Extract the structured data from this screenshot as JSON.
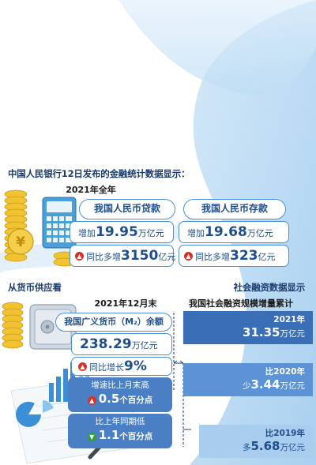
{
  "intro": "中国人民银行12日发布的金融统计数据显示：",
  "year_heading": "2021年全年",
  "loans": {
    "title": "我国人民币贷款",
    "increase_prefix": "增加",
    "increase_value": "19.95",
    "increase_unit": "万亿元",
    "yoy_prefix": "同比多增",
    "yoy_value": "3150",
    "yoy_unit": "亿元"
  },
  "deposits": {
    "title": "我国人民币存款",
    "increase_prefix": "增加",
    "increase_value": "19.68",
    "increase_unit": "万亿元",
    "yoy_prefix": "同比多增",
    "yoy_value": "323",
    "yoy_unit": "亿元"
  },
  "money_supply": {
    "section": "从货币供应看",
    "period": "2021年12月末",
    "title": "我国广义货币（M₂）余额",
    "balance_value": "238.29",
    "balance_unit": "万亿元",
    "yoy_prefix": "同比增长",
    "yoy_value": "9%",
    "vs_last_month_label": "增速比上月末高",
    "vs_last_month_value": "0.5",
    "vs_last_month_unit": "个百分点",
    "vs_last_year_label": "比上年同期低",
    "vs_last_year_value": "1.1",
    "vs_last_year_unit": "个百分点"
  },
  "social_financing": {
    "section": "社会融资数据显示",
    "title": "我国社会融资规模增量累计",
    "bars": [
      {
        "label": "2021年",
        "prefix": "",
        "value": "31.35",
        "unit": "万亿元"
      },
      {
        "label": "比2020年",
        "prefix": "少",
        "value": "3.44",
        "unit": "万亿元"
      },
      {
        "label": "比2019年",
        "prefix": "多",
        "value": "5.68",
        "unit": "万亿元"
      }
    ]
  },
  "colors": {
    "accent": "#4a90d9",
    "navy": "#1a3a6e",
    "bar_dark": "#3a6fb8",
    "bar_mid": "#5b93d6",
    "bar_light": "#a8cdef",
    "badge_up": "#d93025",
    "badge_down": "#2e9e3f"
  },
  "icons": {
    "up": "▲",
    "down": "▼"
  }
}
